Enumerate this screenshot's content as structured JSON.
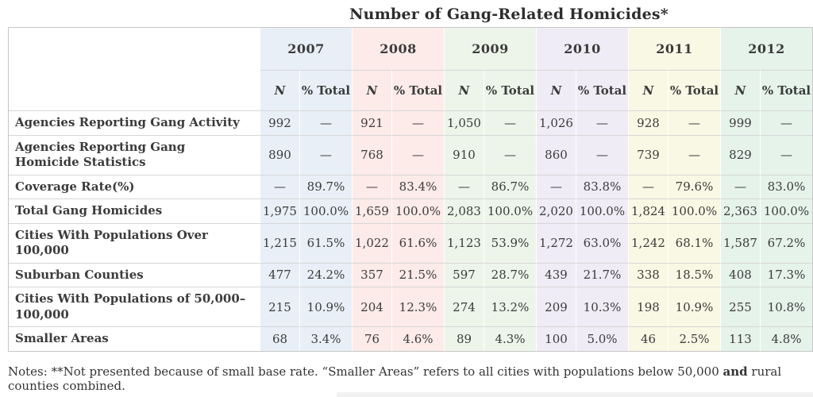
{
  "page": {
    "title": "Number of Gang-Related Homicides*"
  },
  "table": {
    "sub_columns": {
      "n": "N",
      "pct": "% Total"
    },
    "years": [
      {
        "label": "2007",
        "color": "#e8eff7"
      },
      {
        "label": "2008",
        "color": "#fcebe8"
      },
      {
        "label": "2009",
        "color": "#edf5ea"
      },
      {
        "label": "2010",
        "color": "#efecf5"
      },
      {
        "label": "2011",
        "color": "#f9f8e4"
      },
      {
        "label": "2012",
        "color": "#e5f3eb"
      }
    ]
  },
  "chart_data": {
    "type": "table",
    "title": "Number of Gang-Related Homicides*",
    "column_groups": [
      "2007",
      "2008",
      "2009",
      "2010",
      "2011",
      "2012"
    ],
    "sub_columns": [
      "N",
      "% Total"
    ],
    "rows": [
      {
        "label": "Agencies Reporting Gang Activity",
        "values": [
          "992",
          "—",
          "921",
          "—",
          "1,050",
          "—",
          "1,026",
          "—",
          "928",
          "—",
          "999",
          "—"
        ]
      },
      {
        "label": "Agencies Reporting Gang Homicide Statistics",
        "values": [
          "890",
          "—",
          "768",
          "—",
          "910",
          "—",
          "860",
          "—",
          "739",
          "—",
          "829",
          "—"
        ]
      },
      {
        "label": "Coverage Rate(%)",
        "values": [
          "—",
          "89.7%",
          "—",
          "83.4%",
          "—",
          "86.7%",
          "—",
          "83.8%",
          "—",
          "79.6%",
          "—",
          "83.0%"
        ]
      },
      {
        "label": "Total Gang Homicides",
        "values": [
          "1,975",
          "100.0%",
          "1,659",
          "100.0%",
          "2,083",
          "100.0%",
          "2,020",
          "100.0%",
          "1,824",
          "100.0%",
          "2,363",
          "100.0%"
        ]
      },
      {
        "label": "Cities With Populations Over 100,000",
        "values": [
          "1,215",
          "61.5%",
          "1,022",
          "61.6%",
          "1,123",
          "53.9%",
          "1,272",
          "63.0%",
          "1,242",
          "68.1%",
          "1,587",
          "67.2%"
        ]
      },
      {
        "label": "Suburban Counties",
        "values": [
          "477",
          "24.2%",
          "357",
          "21.5%",
          "597",
          "28.7%",
          "439",
          "21.7%",
          "338",
          "18.5%",
          "408",
          "17.3%"
        ]
      },
      {
        "label": "Cities With Populations of 50,000–100,000",
        "values": [
          "215",
          "10.9%",
          "204",
          "12.3%",
          "274",
          "13.2%",
          "209",
          "10.3%",
          "198",
          "10.9%",
          "255",
          "10.8%"
        ]
      },
      {
        "label": "Smaller Areas",
        "values": [
          "68",
          "3.4%",
          "76",
          "4.6%",
          "89",
          "4.3%",
          "100",
          "5.0%",
          "46",
          "2.5%",
          "113",
          "4.8%"
        ]
      }
    ]
  },
  "notes": {
    "prefix": "Notes: **Not presented because of small base rate. “Smaller Areas” refers to all cities with populations below 50,000 ",
    "bold_word": "and",
    "suffix": " rural counties combined."
  }
}
